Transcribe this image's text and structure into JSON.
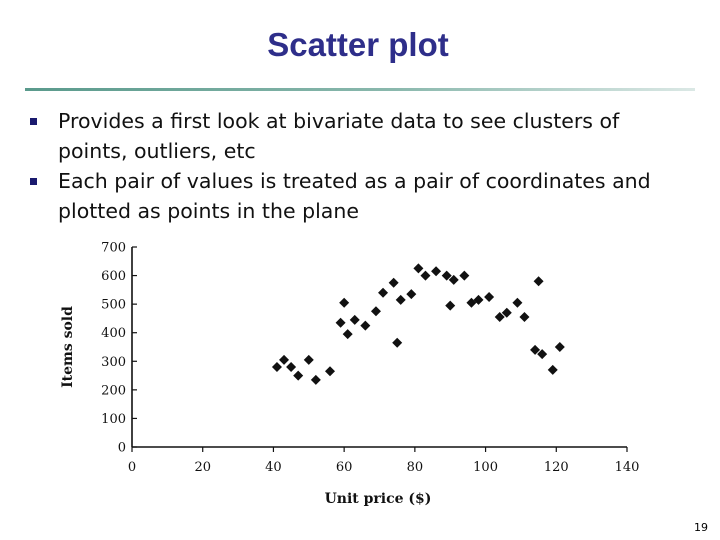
{
  "slide": {
    "title": "Scatter plot",
    "bullets": [
      "Provides a first look at bivariate data to see clusters of points, outliers, etc",
      "Each pair of values is treated as a pair of coordinates and plotted as points in the plane"
    ],
    "page_number": "19"
  },
  "chart_data": {
    "type": "scatter",
    "xlabel": "Unit price ($)",
    "ylabel": "Items sold",
    "xlim": [
      0,
      140
    ],
    "ylim": [
      0,
      700
    ],
    "xticks": [
      0,
      20,
      40,
      60,
      80,
      100,
      120,
      140
    ],
    "yticks": [
      0,
      100,
      200,
      300,
      400,
      500,
      600,
      700
    ],
    "grid": false,
    "marker": "diamond",
    "marker_color": "#111111",
    "points": [
      {
        "x": 41,
        "y": 280
      },
      {
        "x": 43,
        "y": 305
      },
      {
        "x": 45,
        "y": 280
      },
      {
        "x": 47,
        "y": 250
      },
      {
        "x": 50,
        "y": 305
      },
      {
        "x": 52,
        "y": 235
      },
      {
        "x": 56,
        "y": 265
      },
      {
        "x": 59,
        "y": 435
      },
      {
        "x": 60,
        "y": 505
      },
      {
        "x": 61,
        "y": 395
      },
      {
        "x": 63,
        "y": 445
      },
      {
        "x": 66,
        "y": 425
      },
      {
        "x": 69,
        "y": 475
      },
      {
        "x": 71,
        "y": 540
      },
      {
        "x": 74,
        "y": 575
      },
      {
        "x": 75,
        "y": 365
      },
      {
        "x": 76,
        "y": 515
      },
      {
        "x": 79,
        "y": 535
      },
      {
        "x": 81,
        "y": 625
      },
      {
        "x": 83,
        "y": 600
      },
      {
        "x": 86,
        "y": 615
      },
      {
        "x": 89,
        "y": 600
      },
      {
        "x": 90,
        "y": 495
      },
      {
        "x": 91,
        "y": 585
      },
      {
        "x": 94,
        "y": 600
      },
      {
        "x": 96,
        "y": 505
      },
      {
        "x": 98,
        "y": 515
      },
      {
        "x": 101,
        "y": 525
      },
      {
        "x": 104,
        "y": 455
      },
      {
        "x": 106,
        "y": 470
      },
      {
        "x": 109,
        "y": 505
      },
      {
        "x": 111,
        "y": 455
      },
      {
        "x": 114,
        "y": 340
      },
      {
        "x": 115,
        "y": 580
      },
      {
        "x": 116,
        "y": 325
      },
      {
        "x": 119,
        "y": 270
      },
      {
        "x": 121,
        "y": 350
      }
    ]
  }
}
